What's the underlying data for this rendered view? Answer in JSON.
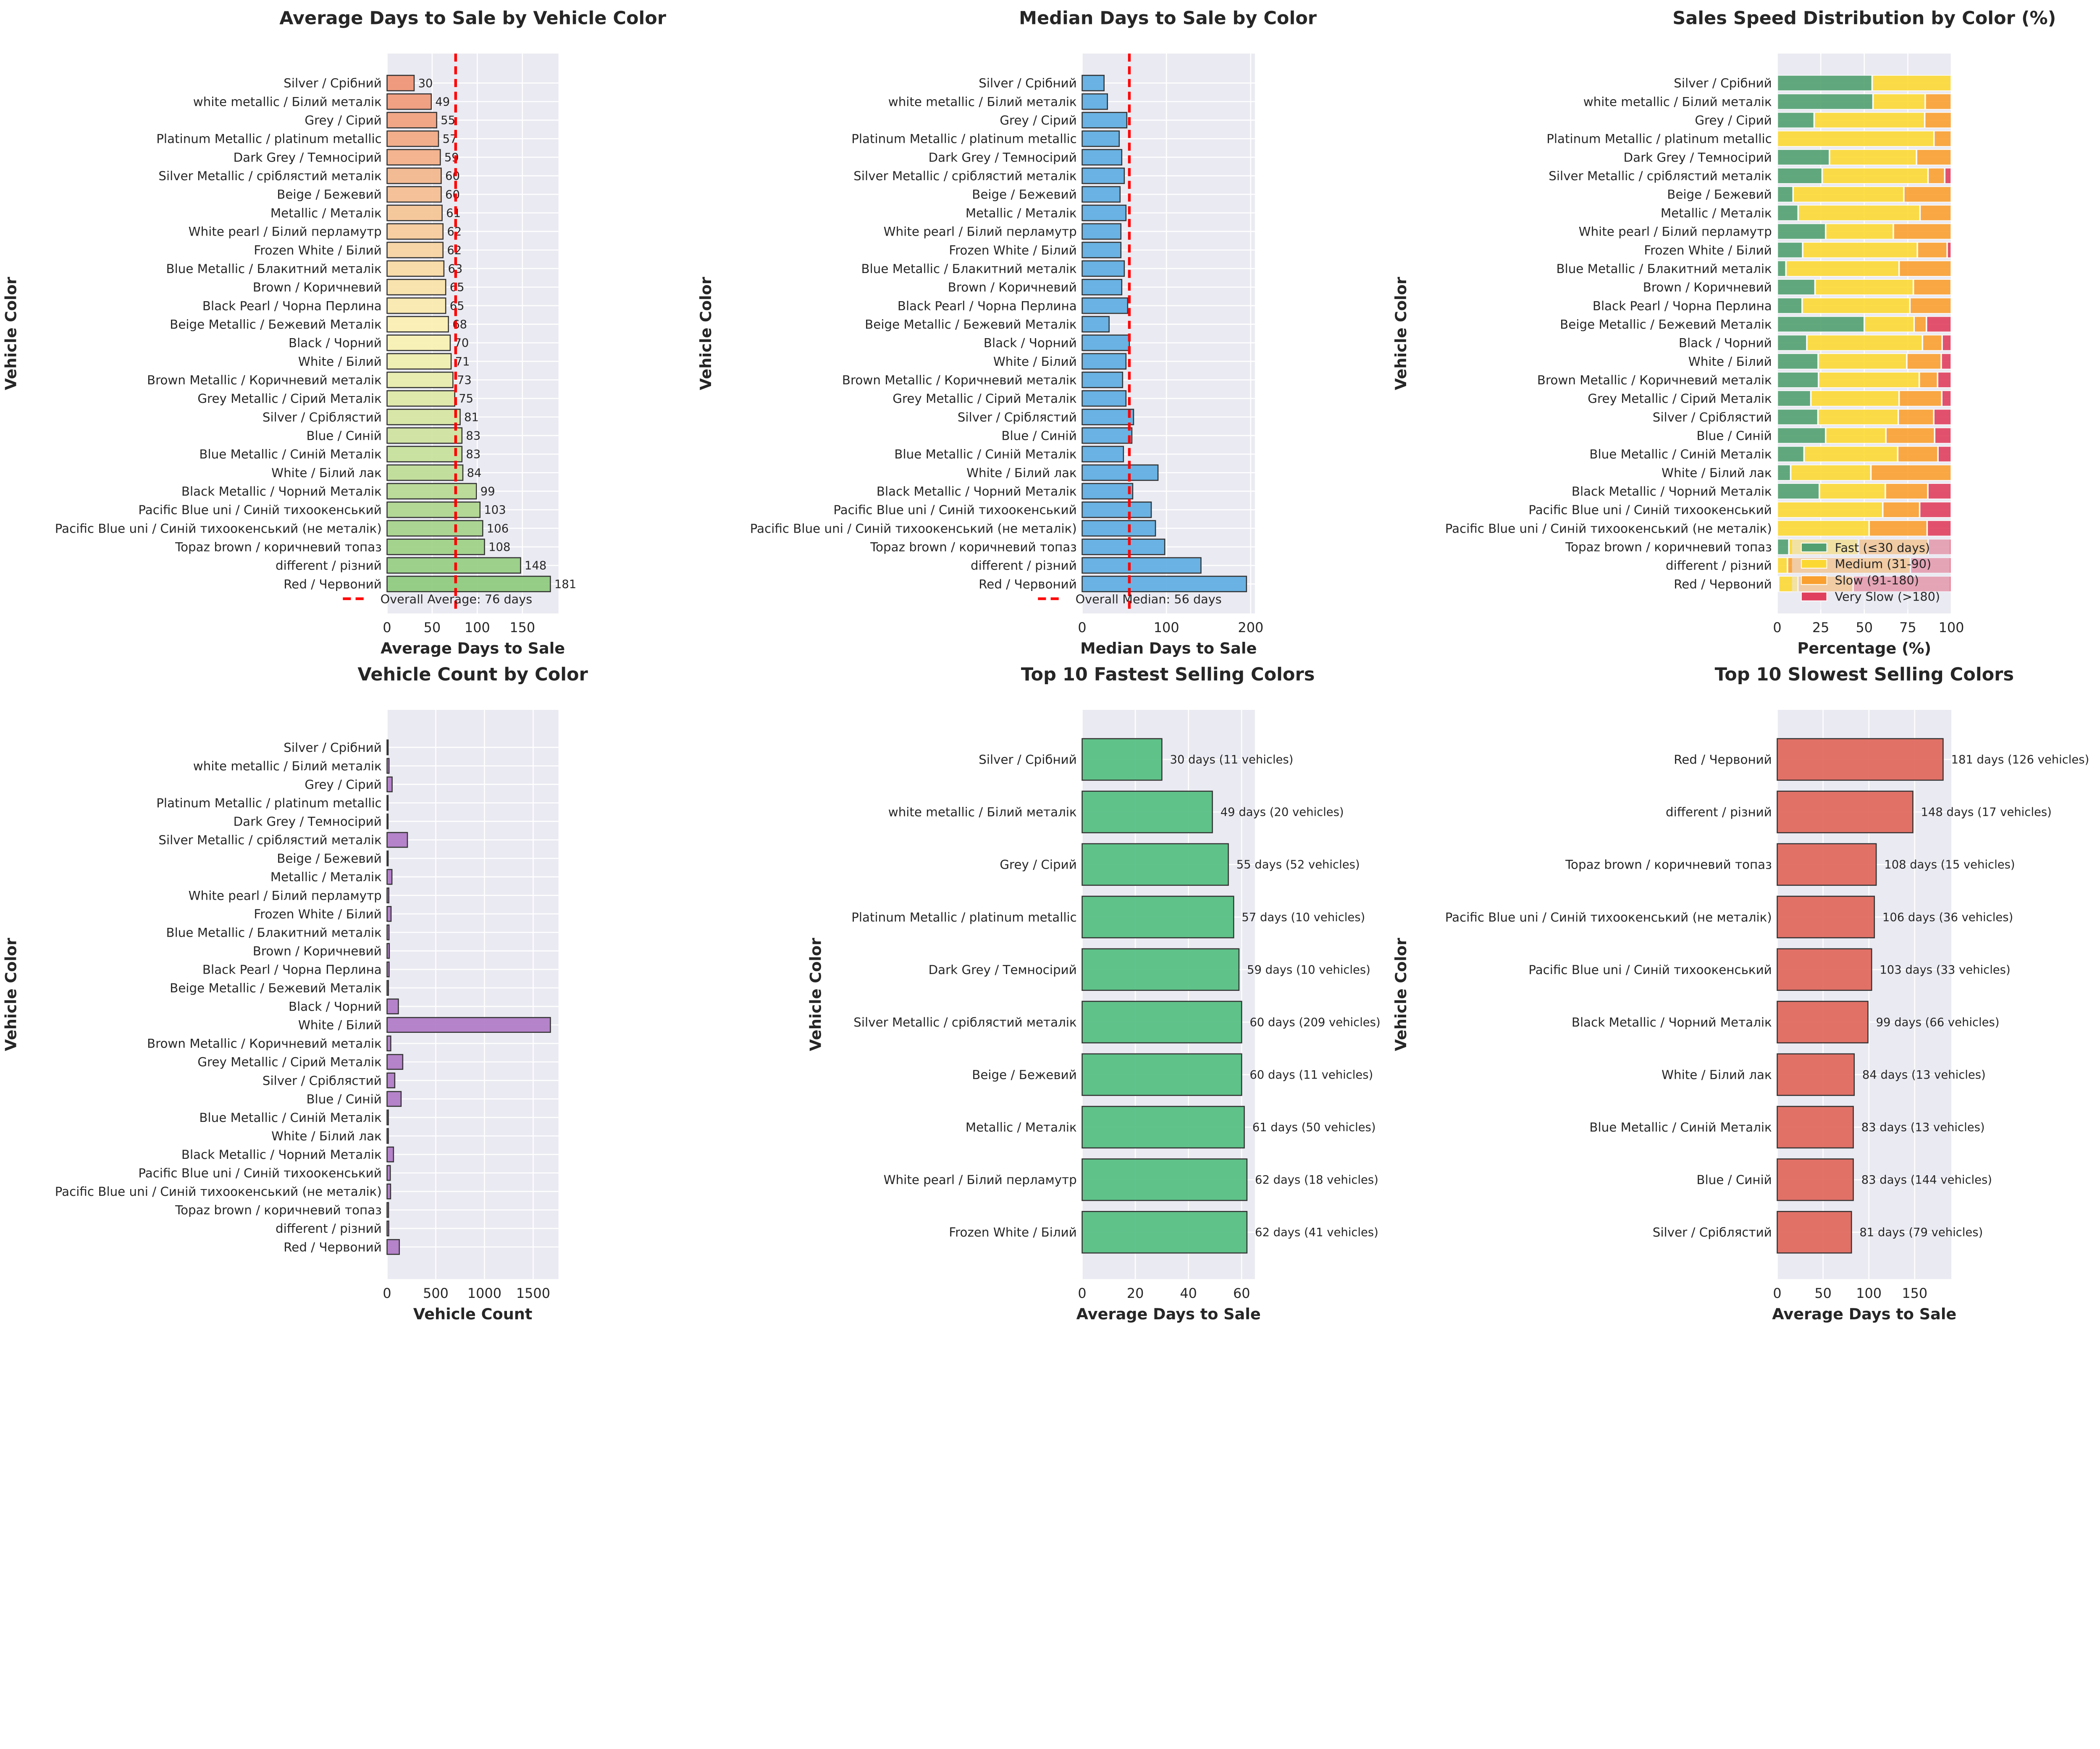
{
  "colors": {
    "background": "#eaeaf2",
    "grid": "#ffffff",
    "reference_line": "#ff0000",
    "median_bar": "#5dade2",
    "count_bar": "#af7ac5",
    "fastest_bar": "#52be80",
    "slowest_bar": "#e0665b",
    "average_gradient": [
      "#ef9274",
      "#fbf3b4",
      "#8dca7e"
    ],
    "stack": [
      "#52a070",
      "#fcd833",
      "#f9a030",
      "#e0405e"
    ]
  },
  "chart_data": [
    {
      "type": "bar",
      "orientation": "horizontal",
      "title": "Average Days to Sale by Vehicle Color",
      "xlabel": "Average Days to Sale",
      "ylabel": "Vehicle Color",
      "xlim": [
        0,
        190
      ],
      "xticks": [
        "0",
        "50",
        "100",
        "150"
      ],
      "grid": true,
      "categories": [
        "Silver / Срібний",
        "white metallic / Білий металік",
        "Grey / Сірий",
        "Platinum Metallic / platinum metallic",
        "Dark Grey / Темносірий",
        "Silver Metallic / сріблястий металік",
        "Beige / Бежевий",
        "Metallic / Металік",
        "White pearl / Білий перламутр",
        "Frozen White / Білий",
        "Blue Metallic / Блакитний металік",
        "Brown / Коричневий",
        "Black Pearl / Чорна Перлина",
        "Beige Metallic / Бежевий Металік",
        "Black / Чорний",
        "White / Білий",
        "Brown Metallic / Коричневий металік",
        "Grey Metallic / Сірий Металік",
        "Silver / Сріблястий",
        "Blue / Синій",
        "Blue Metallic / Синій Металік",
        "White / Білий лак",
        "Black Metallic / Чорний Металік",
        "Pacific Blue uni / Синій тихоокенський",
        "Pacific Blue uni / Синій тихоокенський (не металік)",
        "Topaz brown / коричневий топаз",
        "different / різний",
        "Red / Червоний"
      ],
      "values": [
        30,
        49,
        55,
        57,
        59,
        60,
        60,
        61,
        62,
        62,
        63,
        65,
        65,
        68,
        70,
        71,
        73,
        75,
        81,
        83,
        83,
        84,
        99,
        103,
        106,
        108,
        148,
        181
      ],
      "reference_line": {
        "value": 76,
        "label": "Overall Average: 76 days"
      },
      "legend": "bottom-left"
    },
    {
      "type": "bar",
      "orientation": "horizontal",
      "title": "Median Days to Sale by Color",
      "xlabel": "Median Days to Sale",
      "ylabel": "Vehicle Color",
      "xlim": [
        0,
        205
      ],
      "xticks": [
        "0",
        "100",
        "200"
      ],
      "grid": true,
      "categories": [
        "Silver / Срібний",
        "white metallic / Білий металік",
        "Grey / Сірий",
        "Platinum Metallic / platinum metallic",
        "Dark Grey / Темносірий",
        "Silver Metallic / сріблястий металік",
        "Beige / Бежевий",
        "Metallic / Металік",
        "White pearl / Білий перламутр",
        "Frozen White / Білий",
        "Blue Metallic / Блакитний металік",
        "Brown / Коричневий",
        "Black Pearl / Чорна Перлина",
        "Beige Metallic / Бежевий Металік",
        "Black / Чорний",
        "White / Білий",
        "Brown Metallic / Коричневий металік",
        "Grey Metallic / Сірий Металік",
        "Silver / Сріблястий",
        "Blue / Синій",
        "Blue Metallic / Синій Металік",
        "White / Білий лак",
        "Black Metallic / Чорний Металік",
        "Pacific Blue uni / Синій тихоокенський",
        "Pacific Blue uni / Синій тихоокенський (не металік)",
        "Topaz brown / коричневий топаз",
        "different / різний",
        "Red / Червоний"
      ],
      "values": [
        26,
        30,
        53,
        44,
        47,
        50,
        45,
        52,
        46,
        46,
        50,
        47,
        54,
        32,
        56,
        52,
        48,
        52,
        61,
        59,
        49,
        90,
        60,
        82,
        87,
        98,
        141,
        195
      ],
      "reference_line": {
        "value": 56,
        "label": "Overall Median: 56 days"
      },
      "legend": "bottom-left"
    },
    {
      "type": "bar",
      "orientation": "horizontal",
      "stacked": true,
      "title": "Sales Speed Distribution by Color (%)",
      "xlabel": "Percentage (%)",
      "ylabel": "Vehicle Color",
      "xlim": [
        0,
        100
      ],
      "xticks": [
        "0",
        "25",
        "50",
        "75",
        "100"
      ],
      "grid": true,
      "categories": [
        "Silver / Срібний",
        "white metallic / Білий металік",
        "Grey / Сірий",
        "Platinum Metallic / platinum metallic",
        "Dark Grey / Темносірий",
        "Silver Metallic / сріблястий металік",
        "Beige / Бежевий",
        "Metallic / Металік",
        "White pearl / Білий перламутр",
        "Frozen White / Білий",
        "Blue Metallic / Блакитний металік",
        "Brown / Коричневий",
        "Black Pearl / Чорна Перлина",
        "Beige Metallic / Бежевий Металік",
        "Black / Чорний",
        "White / Білий",
        "Brown Metallic / Коричневий металік",
        "Grey Metallic / Сірий Металік",
        "Silver / Сріблястий",
        "Blue / Синій",
        "Blue Metallic / Синій Металік",
        "White / Білий лак",
        "Black Metallic / Чорний Металік",
        "Pacific Blue uni / Синій тихоокенський",
        "Pacific Blue uni / Синій тихоокенський (не металік)",
        "Topaz brown / коричневий топаз",
        "different / різний",
        "Red / Червоний"
      ],
      "series": [
        {
          "name": "Fast (≤30 days)",
          "values": [
            54.5,
            55,
            21.2,
            0,
            30,
            25.8,
            9.1,
            12,
            27.8,
            14.6,
            5,
            21.7,
            14.3,
            50,
            17,
            23.5,
            23.7,
            19.3,
            23.4,
            27.8,
            15.4,
            7.7,
            24.2,
            0,
            0,
            6.7,
            0,
            0.8
          ]
        },
        {
          "name": "Medium (31-90)",
          "values": [
            45.5,
            30,
            63.5,
            90,
            50,
            60.8,
            63.6,
            70,
            38.9,
            65.9,
            65,
            56.5,
            61.9,
            28.6,
            66.4,
            50.9,
            57.9,
            50.7,
            46.1,
            34.6,
            53.8,
            46.1,
            37.9,
            60.6,
            52.8,
            40,
            5.9,
            11.1
          ]
        },
        {
          "name": "Slow (91-180)",
          "values": [
            0,
            15,
            15.4,
            10,
            20,
            9.6,
            27.3,
            18,
            33.3,
            17.1,
            30,
            21.7,
            23.8,
            7.1,
            11.3,
            19.8,
            10.5,
            24.5,
            20.4,
            28,
            23.1,
            46.2,
            24.4,
            21.2,
            33.3,
            40,
            70.6,
            31.7
          ]
        },
        {
          "name": "Very Slow (>180)",
          "values": [
            0,
            0,
            0,
            0,
            0,
            3.8,
            0,
            0,
            0,
            2.4,
            0,
            0,
            0,
            14.3,
            5.3,
            5.8,
            7.9,
            5.5,
            10.1,
            9.6,
            7.7,
            0,
            13.5,
            18.2,
            13.9,
            13.3,
            23.5,
            56.4
          ]
        }
      ],
      "legend": "bottom-right"
    },
    {
      "type": "bar",
      "orientation": "horizontal",
      "title": "Vehicle Count by Color",
      "xlabel": "Vehicle Count",
      "ylabel": "Vehicle Color",
      "xlim": [
        0,
        1760
      ],
      "xticks": [
        "0",
        "500",
        "1000",
        "1500"
      ],
      "grid": true,
      "categories": [
        "Silver / Срібний",
        "white metallic / Білий металік",
        "Grey / Сірий",
        "Platinum Metallic / platinum metallic",
        "Dark Grey / Темносірий",
        "Silver Metallic / сріблястий металік",
        "Beige / Бежевий",
        "Metallic / Металік",
        "White pearl / Білий перламутр",
        "Frozen White / Білий",
        "Blue Metallic / Блакитний металік",
        "Brown / Коричневий",
        "Black Pearl / Чорна Перлина",
        "Beige Metallic / Бежевий Металік",
        "Black / Чорний",
        "White / Білий",
        "Brown Metallic / Коричневий металік",
        "Grey Metallic / Сірий Металік",
        "Silver / Сріблястий",
        "Blue / Синій",
        "Blue Metallic / Синій Металік",
        "White / Білий лак",
        "Black Metallic / Чорний Металік",
        "Pacific Blue uni / Синій тихоокенський",
        "Pacific Blue uni / Синій тихоокенський (не металік)",
        "Topaz brown / коричневий топаз",
        "different / різний",
        "Red / Червоний"
      ],
      "values": [
        11,
        20,
        52,
        10,
        10,
        209,
        11,
        50,
        18,
        41,
        20,
        23,
        21,
        14,
        116,
        1677,
        38,
        161,
        79,
        144,
        13,
        13,
        66,
        33,
        36,
        15,
        17,
        126
      ]
    },
    {
      "type": "bar",
      "orientation": "horizontal",
      "title": "Top 10 Fastest Selling Colors",
      "xlabel": "Average Days to Sale",
      "ylabel": "Vehicle Color",
      "xlim": [
        0,
        65
      ],
      "xticks": [
        "0",
        "20",
        "40",
        "60"
      ],
      "grid": true,
      "categories": [
        "Silver / Срібний",
        "white metallic / Білий металік",
        "Grey / Сірий",
        "Platinum Metallic / platinum metallic",
        "Dark Grey / Темносірий",
        "Silver Metallic / сріблястий металік",
        "Beige / Бежевий",
        "Metallic / Металік",
        "White pearl / Білий перламутр",
        "Frozen White / Білий"
      ],
      "values": [
        30,
        49,
        55,
        57,
        59,
        60,
        60,
        61,
        62,
        62
      ],
      "data_labels": [
        "30 days (11 vehicles)",
        "49 days (20 vehicles)",
        "55 days (52 vehicles)",
        "57 days (10 vehicles)",
        "59 days (10 vehicles)",
        "60 days (209 vehicles)",
        "60 days (11 vehicles)",
        "61 days (50 vehicles)",
        "62 days (18 vehicles)",
        "62 days (41 vehicles)"
      ]
    },
    {
      "type": "bar",
      "orientation": "horizontal",
      "title": "Top 10 Slowest Selling Colors",
      "xlabel": "Average Days to Sale",
      "ylabel": "Vehicle Color",
      "xlim": [
        0,
        190
      ],
      "xticks": [
        "0",
        "50",
        "100",
        "150"
      ],
      "grid": true,
      "categories": [
        "Red / Червоний",
        "different / різний",
        "Topaz brown / коричневий топаз",
        "Pacific Blue uni / Синій тихоокенський (не металік)",
        "Pacific Blue uni / Синій тихоокенський",
        "Black Metallic / Чорний Металік",
        "White / Білий лак",
        "Blue Metallic / Синій Металік",
        "Blue / Синій",
        "Silver / Сріблястий"
      ],
      "values": [
        181,
        148,
        108,
        106,
        103,
        99,
        84,
        83,
        83,
        81
      ],
      "data_labels": [
        "181 days (126 vehicles)",
        "148 days (17 vehicles)",
        "108 days (15 vehicles)",
        "106 days (36 vehicles)",
        "103 days (33 vehicles)",
        "99 days (66 vehicles)",
        "84 days (13 vehicles)",
        "83 days (13 vehicles)",
        "83 days (144 vehicles)",
        "81 days (79 vehicles)"
      ]
    }
  ]
}
